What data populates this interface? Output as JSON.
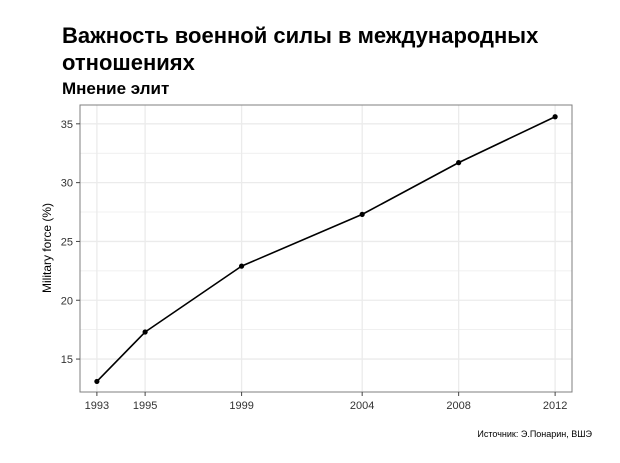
{
  "chart_data": {
    "type": "line",
    "title": "Важность военной силы в международных отношениях",
    "subtitle": "Мнение элит",
    "xlabel": "",
    "ylabel": "Military force (%)",
    "x": [
      1993,
      1995,
      1999,
      2004,
      2008,
      2012
    ],
    "y": [
      13.1,
      17.3,
      22.9,
      27.3,
      31.7,
      35.6
    ],
    "x_ticks": [
      "1993",
      "1995",
      "1999",
      "2004",
      "2008",
      "2012"
    ],
    "y_ticks": [
      "15",
      "20",
      "25",
      "30",
      "35"
    ],
    "xlim": [
      1992.3,
      2012.7
    ],
    "ylim": [
      12.2,
      36.6
    ],
    "grid": true,
    "line_color": "#000000",
    "grid_color": "#ebebeb",
    "border_color": "#7f7f7f"
  },
  "source": "Источник: Э.Понарин, ВШЭ"
}
